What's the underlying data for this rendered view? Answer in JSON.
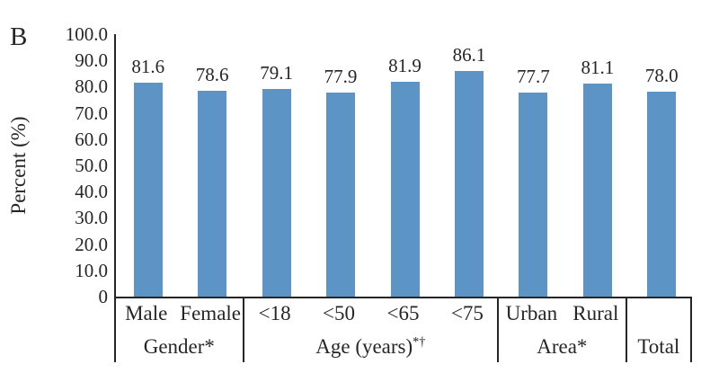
{
  "panel_label": "B",
  "colors": {
    "bar": "#5B94C5",
    "axis_line": "#262626",
    "text": "#262626",
    "background": "#FFFFFF"
  },
  "chart_data": {
    "type": "bar",
    "title": "",
    "xlabel": "",
    "ylabel": "Percent (%)",
    "ylim": [
      0,
      100
    ],
    "grid": false,
    "legend": null,
    "bar_color": "#5B94C5",
    "value_labels_shown": true,
    "yticks": [
      {
        "label": "100.0",
        "value": 100
      },
      {
        "label": "90.0",
        "value": 90
      },
      {
        "label": "80.0",
        "value": 80
      },
      {
        "label": "70.0",
        "value": 70
      },
      {
        "label": "60.0",
        "value": 60
      },
      {
        "label": "50.0",
        "value": 50
      },
      {
        "label": "40.0",
        "value": 40
      },
      {
        "label": "30.0",
        "value": 30
      },
      {
        "label": "20.0",
        "value": 20
      },
      {
        "label": "10.0",
        "value": 10
      },
      {
        "label": "0",
        "value": 0
      }
    ],
    "groups": [
      {
        "label": "Gender*",
        "label_sup": "",
        "categories": [
          "Male",
          "Female"
        ],
        "values": [
          81.6,
          78.6
        ]
      },
      {
        "label": "Age (years)",
        "label_sup": "*†",
        "categories": [
          "<18",
          "<50",
          "<65",
          "<75"
        ],
        "values": [
          79.1,
          77.9,
          81.9,
          86.1
        ]
      },
      {
        "label": "Area*",
        "label_sup": "",
        "categories": [
          "Urban",
          "Rural"
        ],
        "values": [
          77.7,
          81.1
        ]
      },
      {
        "label": "Total",
        "label_sup": "",
        "categories": [
          ""
        ],
        "values": [
          78.0
        ]
      }
    ]
  }
}
